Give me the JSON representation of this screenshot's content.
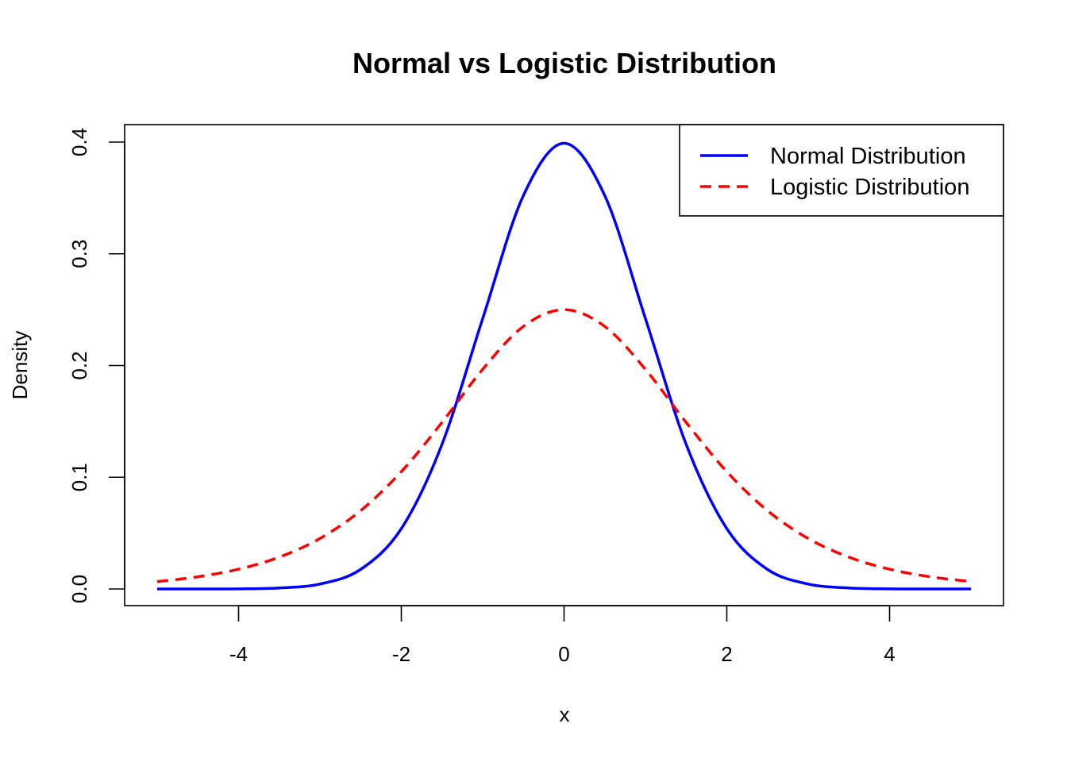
{
  "chart_data": {
    "type": "line",
    "title": "Normal vs Logistic Distribution",
    "xlabel": "x",
    "ylabel": "Density",
    "xlim": [
      -5,
      5
    ],
    "ylim": [
      0,
      0.4
    ],
    "x_ticks": [
      -4,
      -2,
      0,
      2,
      4
    ],
    "x_tick_labels": [
      "-4",
      "-2",
      "0",
      "2",
      "4"
    ],
    "y_ticks": [
      0,
      0.1,
      0.2,
      0.3,
      0.4
    ],
    "y_tick_labels": [
      "0.0",
      "0.1",
      "0.2",
      "0.3",
      "0.4"
    ],
    "grid": false,
    "legend_position": "top-right",
    "x": [
      -5,
      -4.5,
      -4,
      -3.5,
      -3,
      -2.5,
      -2,
      -1.5,
      -1,
      -0.5,
      0,
      0.5,
      1,
      1.5,
      2,
      2.5,
      3,
      3.5,
      4,
      4.5,
      5
    ],
    "series": [
      {
        "name": "Normal Distribution",
        "color": "#0000ff",
        "line_style": "solid",
        "values": [
          0.0,
          0.0,
          0.0001,
          0.0009,
          0.0044,
          0.0175,
          0.054,
          0.1295,
          0.242,
          0.3521,
          0.3989,
          0.3521,
          0.242,
          0.1295,
          0.054,
          0.0175,
          0.0044,
          0.0009,
          0.0001,
          0.0,
          0.0
        ]
      },
      {
        "name": "Logistic Distribution",
        "color": "#ff0000",
        "line_style": "dashed",
        "values": [
          0.0066,
          0.0109,
          0.0177,
          0.0285,
          0.0452,
          0.0701,
          0.105,
          0.1491,
          0.1966,
          0.235,
          0.25,
          0.235,
          0.1966,
          0.1491,
          0.105,
          0.0701,
          0.0452,
          0.0285,
          0.0177,
          0.0109,
          0.0066
        ]
      }
    ]
  }
}
